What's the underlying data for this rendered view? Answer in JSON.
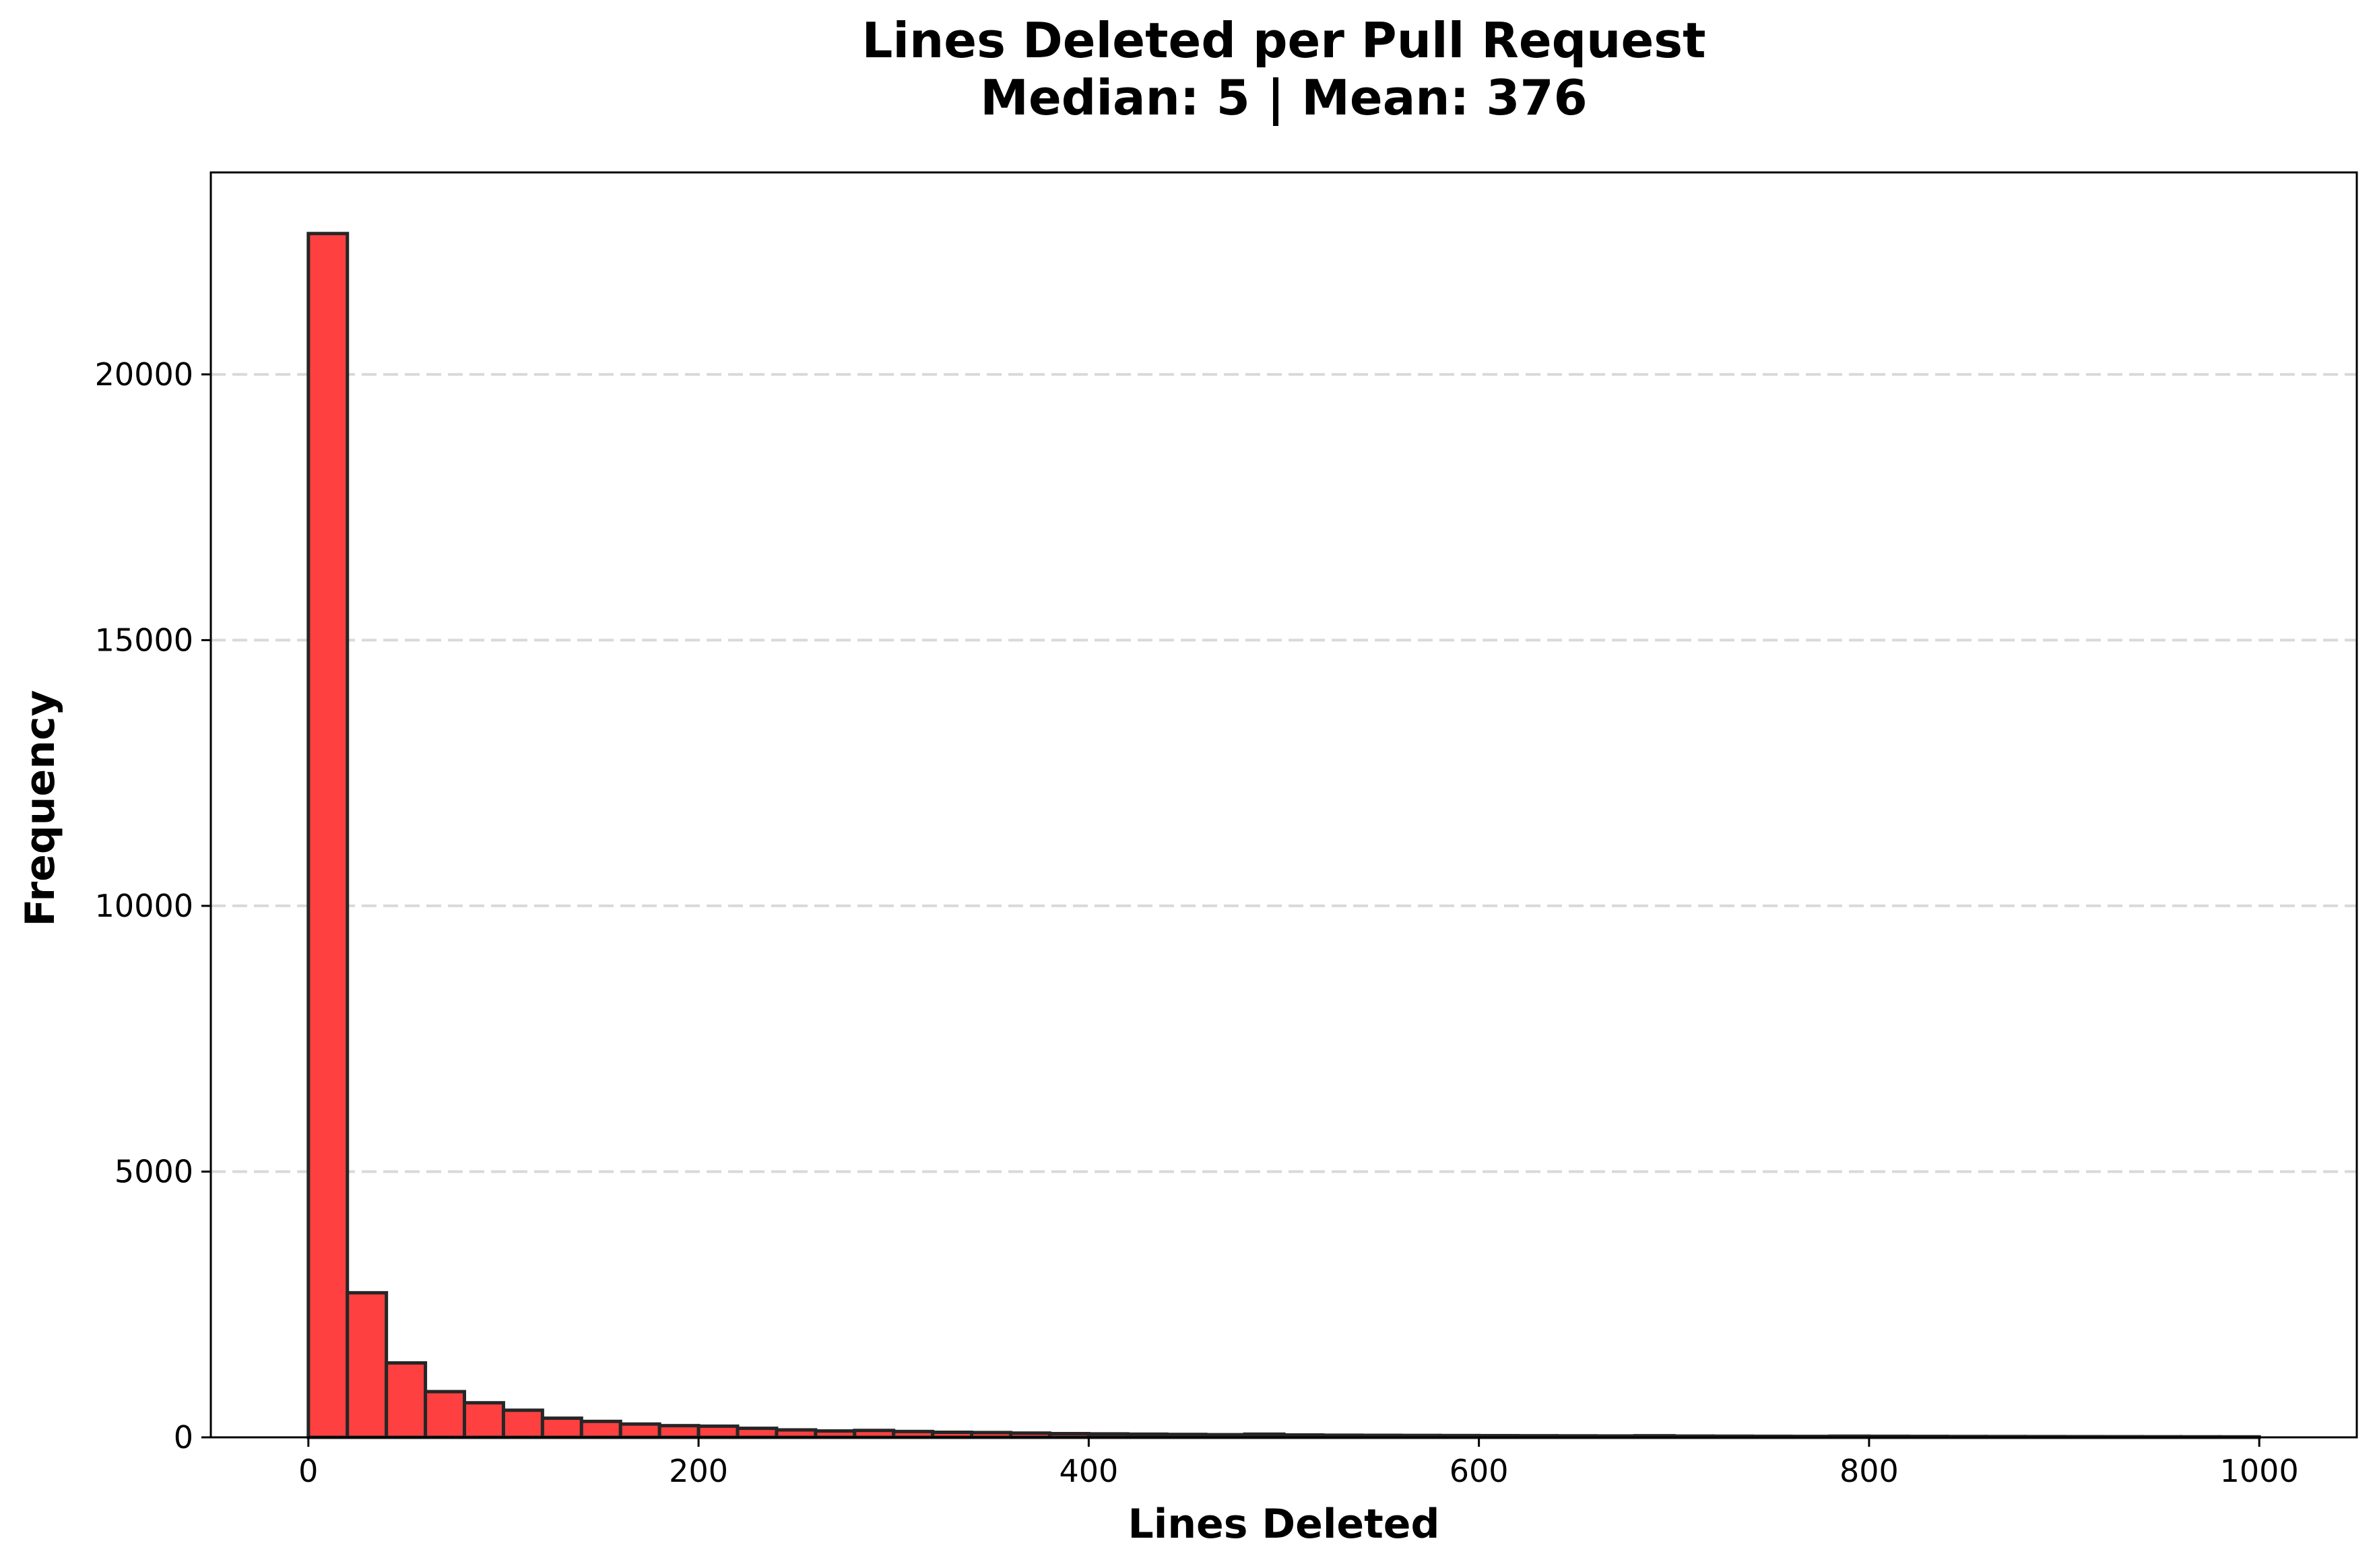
{
  "chart_data": {
    "type": "bar",
    "title": "Lines Deleted per Pull Request",
    "subtitle": "Median: 5 | Mean: 376",
    "xlabel": "Lines Deleted",
    "ylabel": "Frequency",
    "xlim": [
      -50,
      1050
    ],
    "ylim": [
      0,
      23800
    ],
    "xticks": [
      0,
      200,
      400,
      600,
      800,
      1000
    ],
    "yticks": [
      0,
      5000,
      10000,
      15000,
      20000
    ],
    "grid": "y-dashed",
    "bar_color": "#ff4040",
    "edge_color": "#262626",
    "bin_width": 20,
    "bin_starts": [
      0,
      20,
      40,
      60,
      80,
      100,
      120,
      140,
      160,
      180,
      200,
      220,
      240,
      260,
      280,
      300,
      320,
      340,
      360,
      380,
      400,
      420,
      440,
      460,
      480,
      500,
      520,
      540,
      560,
      580,
      600,
      620,
      640,
      660,
      680,
      700,
      720,
      740,
      760,
      780,
      800,
      820,
      840,
      860,
      880,
      900,
      920,
      940,
      960,
      980
    ],
    "values": [
      22650,
      2720,
      1400,
      860,
      650,
      510,
      360,
      300,
      250,
      220,
      210,
      170,
      140,
      120,
      130,
      110,
      95,
      90,
      80,
      70,
      65,
      60,
      55,
      50,
      60,
      45,
      40,
      38,
      36,
      34,
      32,
      30,
      28,
      26,
      30,
      24,
      22,
      20,
      18,
      22,
      20,
      18,
      16,
      15,
      14,
      13,
      12,
      11,
      10,
      9
    ]
  }
}
